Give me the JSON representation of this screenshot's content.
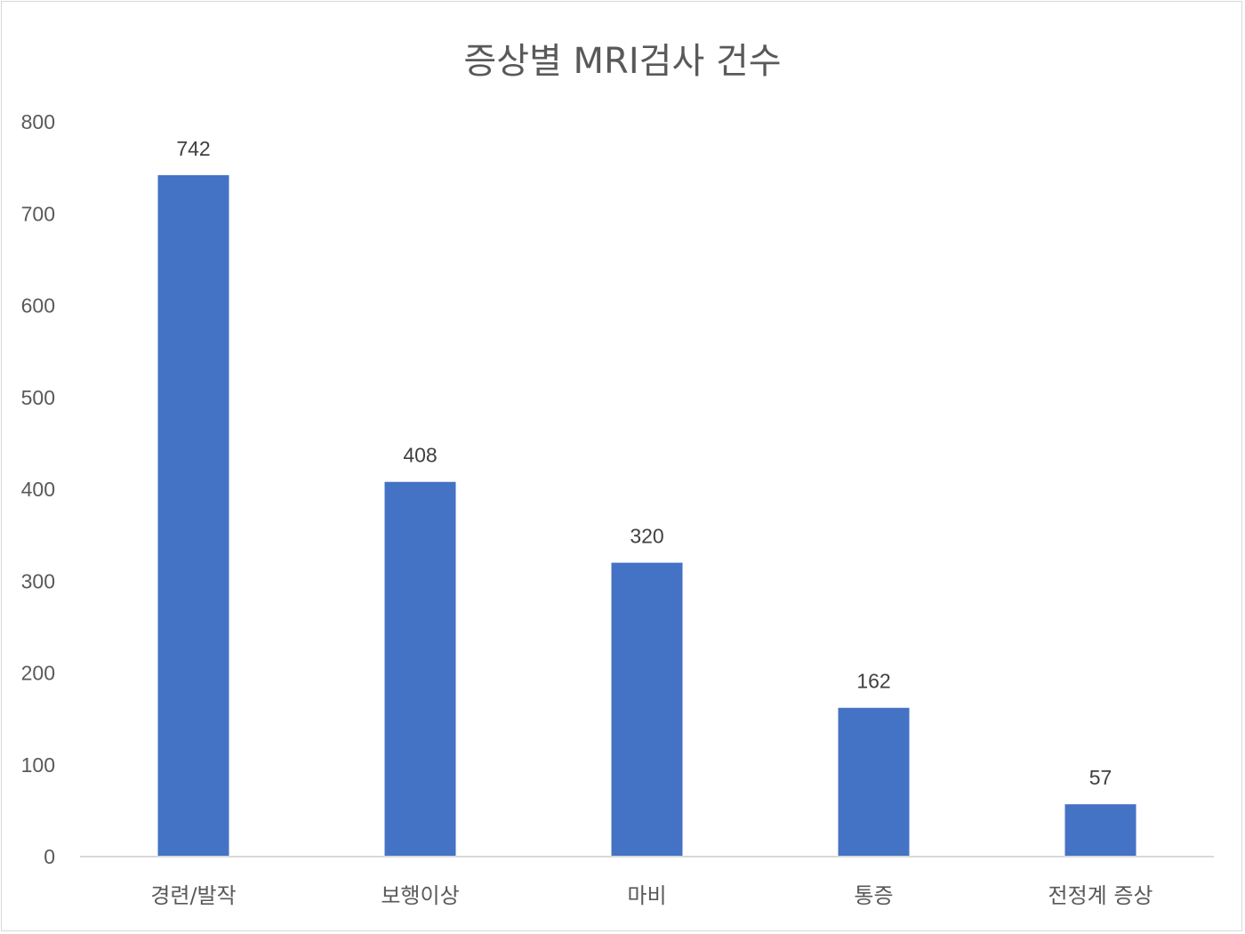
{
  "chart_data": {
    "type": "bar",
    "title": "증상별 MRI검사 건수",
    "categories": [
      "경련/발작",
      "보행이상",
      "마비",
      "통증",
      "전정계 증상"
    ],
    "values": [
      742,
      408,
      320,
      162,
      57
    ],
    "data_labels": [
      "742",
      "408",
      "320",
      "162",
      "57"
    ],
    "yticks": [
      "0",
      "100",
      "200",
      "300",
      "400",
      "500",
      "600",
      "700",
      "800"
    ],
    "ylim": [
      0,
      800
    ],
    "grid": false,
    "legend": "none",
    "bar_color": "#4472C4",
    "axis_color": "#d9d9d9"
  }
}
